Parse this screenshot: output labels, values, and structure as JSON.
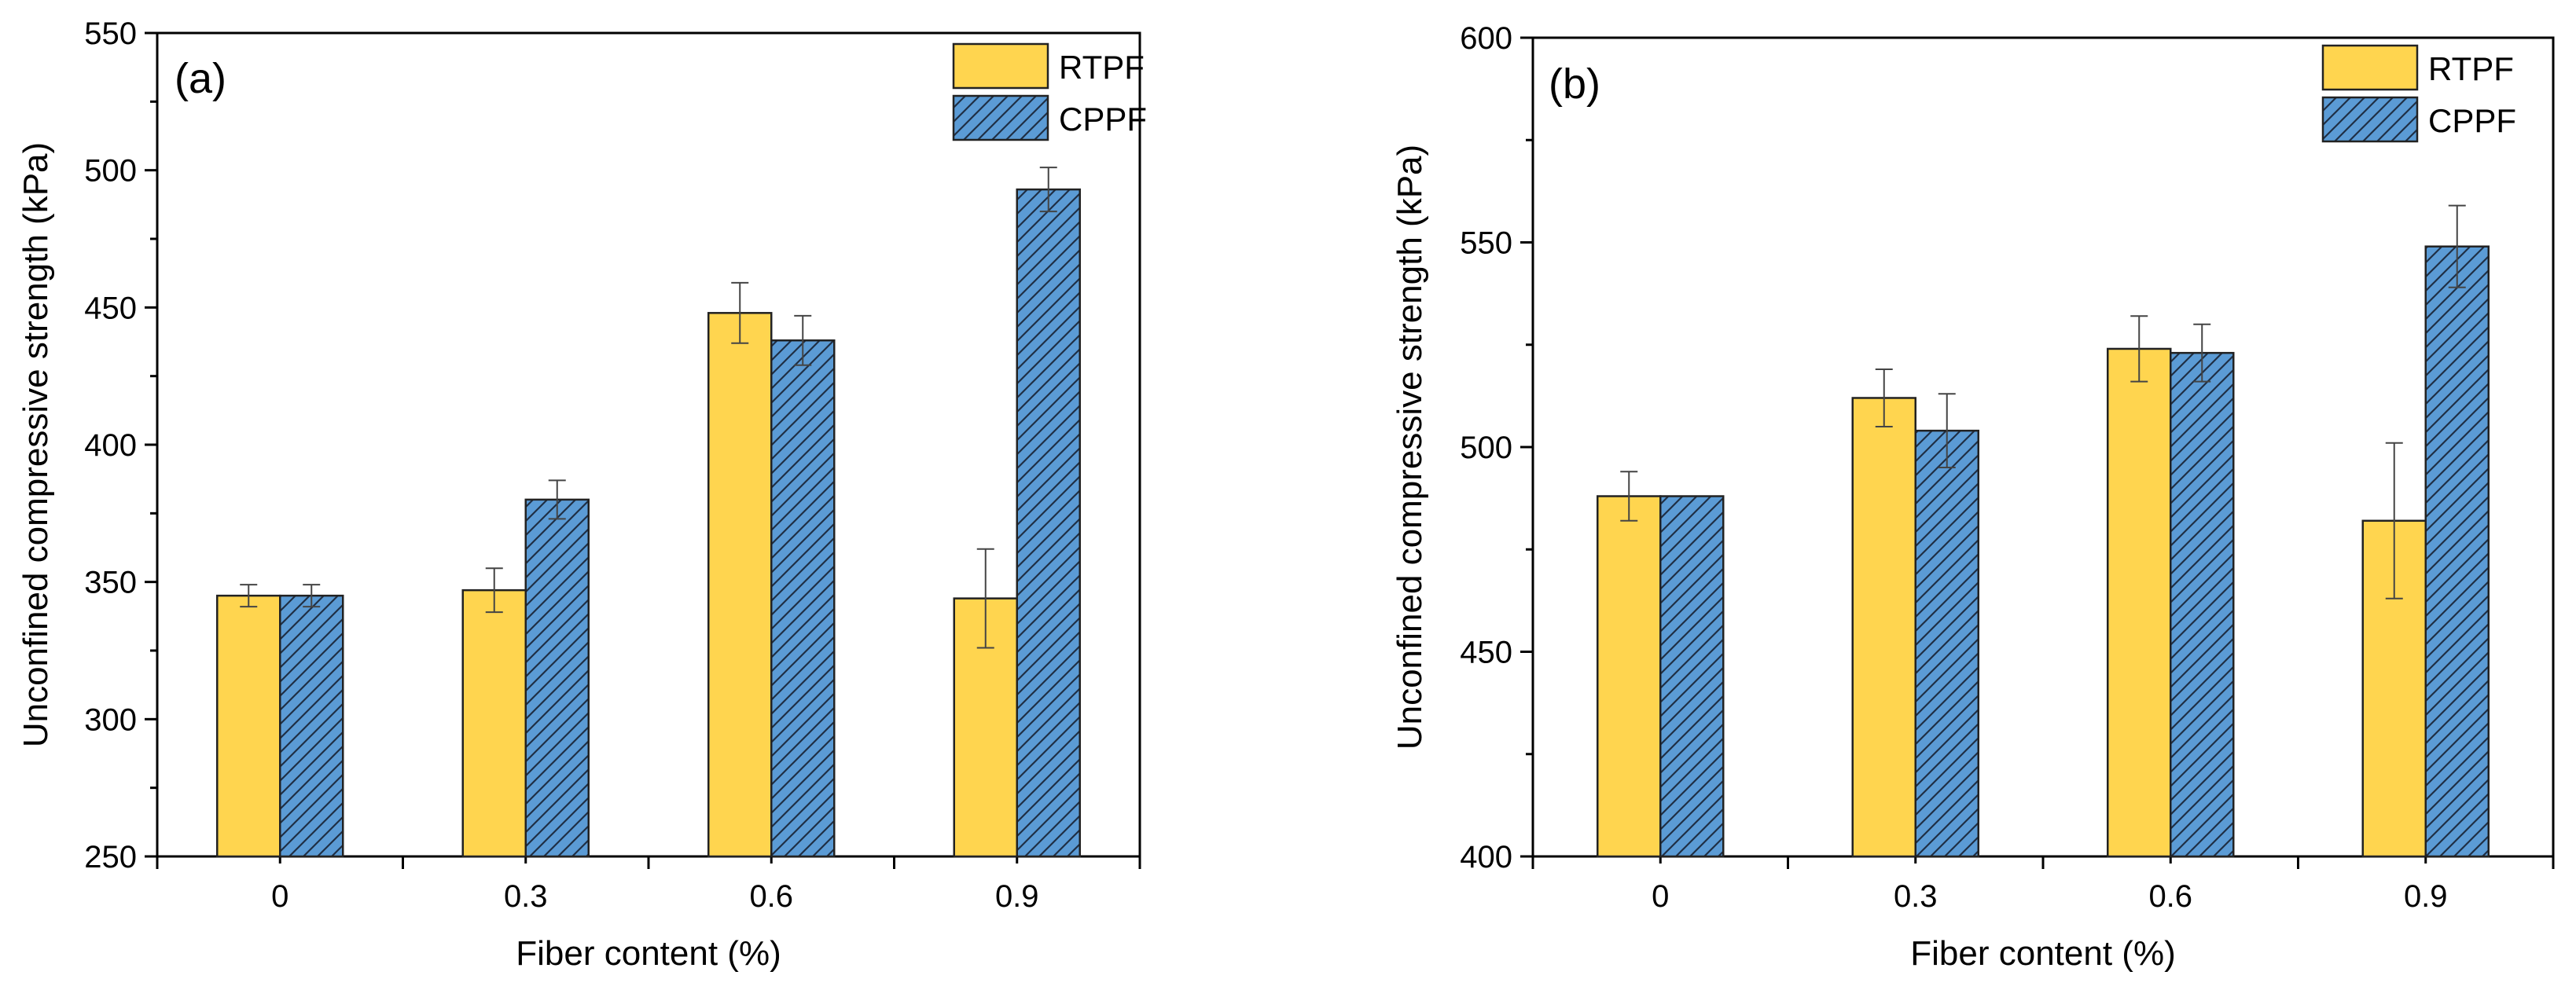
{
  "chart_data": [
    {
      "type": "bar",
      "panel_label": "(a)",
      "xlabel": "Fiber content (%)",
      "ylabel": "Unconfined compressive strength (kPa)",
      "categories": [
        "0",
        "0.3",
        "0.6",
        "0.9"
      ],
      "ylim": [
        250,
        550
      ],
      "yticks": [
        "250",
        "300",
        "350",
        "400",
        "450",
        "500",
        "550"
      ],
      "legend_position": "top-right",
      "series": [
        {
          "name": "RTPF",
          "color": "#FFD54F",
          "hatch": false,
          "values": [
            345,
            347,
            448,
            344
          ],
          "errors": [
            4,
            8,
            11,
            18
          ]
        },
        {
          "name": "CPPF",
          "color": "#5B9BD5",
          "hatch": true,
          "values": [
            345,
            380,
            438,
            493
          ],
          "errors": [
            4,
            7,
            9,
            8
          ]
        }
      ]
    },
    {
      "type": "bar",
      "panel_label": "(b)",
      "xlabel": "Fiber content (%)",
      "ylabel": "Unconfined compressive strength (kPa)",
      "categories": [
        "0",
        "0.3",
        "0.6",
        "0.9"
      ],
      "ylim": [
        400,
        600
      ],
      "yticks": [
        "400",
        "450",
        "500",
        "550",
        "600"
      ],
      "legend_position": "top-right",
      "series": [
        {
          "name": "RTPF",
          "color": "#FFD54F",
          "hatch": false,
          "values": [
            488,
            512,
            524,
            482
          ],
          "errors": [
            6,
            7,
            8,
            19
          ]
        },
        {
          "name": "CPPF",
          "color": "#5B9BD5",
          "hatch": true,
          "values": [
            488,
            504,
            523,
            549
          ],
          "errors": [
            0,
            9,
            7,
            10
          ]
        }
      ]
    }
  ]
}
